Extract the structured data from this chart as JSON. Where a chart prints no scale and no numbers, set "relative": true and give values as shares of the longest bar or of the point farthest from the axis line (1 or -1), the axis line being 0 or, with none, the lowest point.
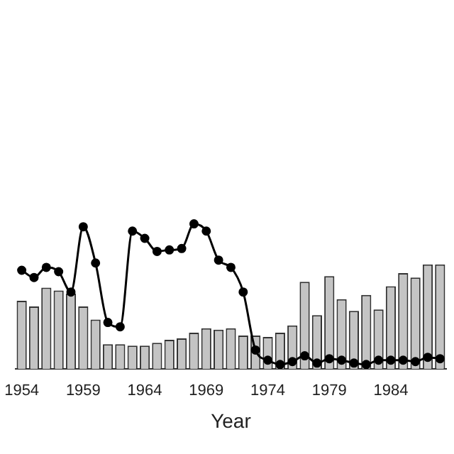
{
  "chart_data": {
    "type": "bar",
    "xlabel": "Year",
    "relative": true,
    "marker": "circle",
    "grid": false,
    "legend": false,
    "categories": [
      "1954",
      null,
      null,
      null,
      null,
      "1959",
      null,
      null,
      null,
      null,
      "1964",
      null,
      null,
      null,
      null,
      "1969",
      null,
      null,
      null,
      null,
      "1974",
      null,
      null,
      null,
      null,
      "1979",
      null,
      null,
      null,
      null,
      "1984",
      null,
      null,
      null,
      null
    ],
    "series": [
      {
        "color": "#c4c4c4",
        "values": [
          0.47,
          0.43,
          0.56,
          0.54,
          0.52,
          0.43,
          0.34,
          0.17,
          0.17,
          0.16,
          0.16,
          0.18,
          0.2,
          0.21,
          0.25,
          0.28,
          0.27,
          0.28,
          0.23,
          0.23,
          0.22,
          0.25,
          0.3,
          0.6,
          0.37,
          0.64,
          0.48,
          0.4,
          0.51,
          0.41,
          0.57,
          0.66,
          0.63,
          0.72,
          0.72
        ]
      },
      {
        "type": "line",
        "color": "#000000",
        "values": [
          0.68,
          0.63,
          0.7,
          0.67,
          0.53,
          0.98,
          0.73,
          0.32,
          0.29,
          0.95,
          0.9,
          0.81,
          0.82,
          0.83,
          1.0,
          0.95,
          0.75,
          0.7,
          0.53,
          0.13,
          0.06,
          0.03,
          0.05,
          0.09,
          0.04,
          0.07,
          0.06,
          0.04,
          0.03,
          0.06,
          0.06,
          0.06,
          0.05,
          0.08,
          0.07
        ]
      }
    ]
  }
}
